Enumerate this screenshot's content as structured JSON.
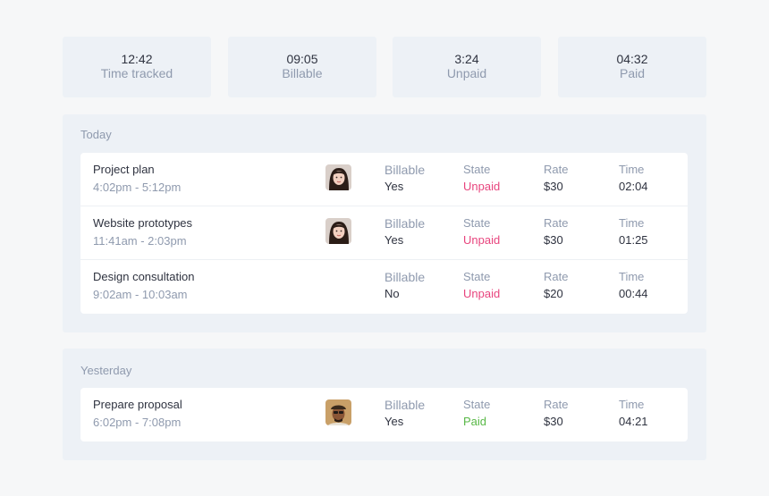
{
  "summary": [
    {
      "value": "12:42",
      "label": "Time tracked"
    },
    {
      "value": "09:05",
      "label": "Billable"
    },
    {
      "value": "3:24",
      "label": "Unpaid"
    },
    {
      "value": "04:32",
      "label": "Paid"
    }
  ],
  "columns": {
    "billable": "Billable",
    "state": "State",
    "rate": "Rate",
    "time": "Time"
  },
  "colors": {
    "unpaid": "#e8457e",
    "paid": "#58b846",
    "panel": "#edf1f6",
    "muted": "#8f9aae"
  },
  "today": {
    "title": "Today",
    "entries": [
      {
        "name": "Project plan",
        "range": "4:02pm - 5:12pm",
        "avatar": "woman-avatar",
        "billable": "Yes",
        "state": "Unpaid",
        "rate": "$30",
        "time": "02:04"
      },
      {
        "name": "Website prototypes",
        "range": "11:41am - 2:03pm",
        "avatar": "woman-avatar",
        "billable": "Yes",
        "state": "Unpaid",
        "rate": "$30",
        "time": "01:25"
      },
      {
        "name": "Design consultation",
        "range": "9:02am - 10:03am",
        "avatar": "",
        "billable": "No",
        "state": "Unpaid",
        "rate": "$20",
        "time": "00:44"
      }
    ]
  },
  "yesterday": {
    "title": "Yesterday",
    "entries": [
      {
        "name": "Prepare proposal",
        "range": "6:02pm - 7:08pm",
        "avatar": "man-avatar",
        "billable": "Yes",
        "state": "Paid",
        "rate": "$30",
        "time": "04:21"
      }
    ]
  }
}
